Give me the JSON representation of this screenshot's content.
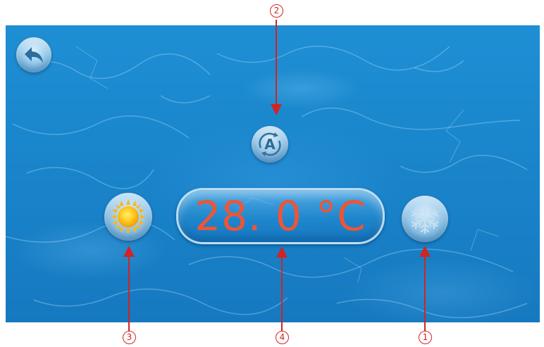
{
  "buttons": {
    "back": {
      "icon": "back-arrow-icon"
    },
    "auto_mode": {
      "label": "A",
      "icon": "auto-mode-icon"
    },
    "heat_mode": {
      "icon": "sun-icon"
    },
    "cool_mode": {
      "icon": "snowflake-icon"
    }
  },
  "temperature": {
    "display": "28. 0 °C"
  },
  "callouts": {
    "c1": "①",
    "c2": "②",
    "c3": "③",
    "c4": "④"
  },
  "colors": {
    "temperature_text": "#ee5535",
    "callout": "#d12424",
    "water": "#1a86cc"
  }
}
